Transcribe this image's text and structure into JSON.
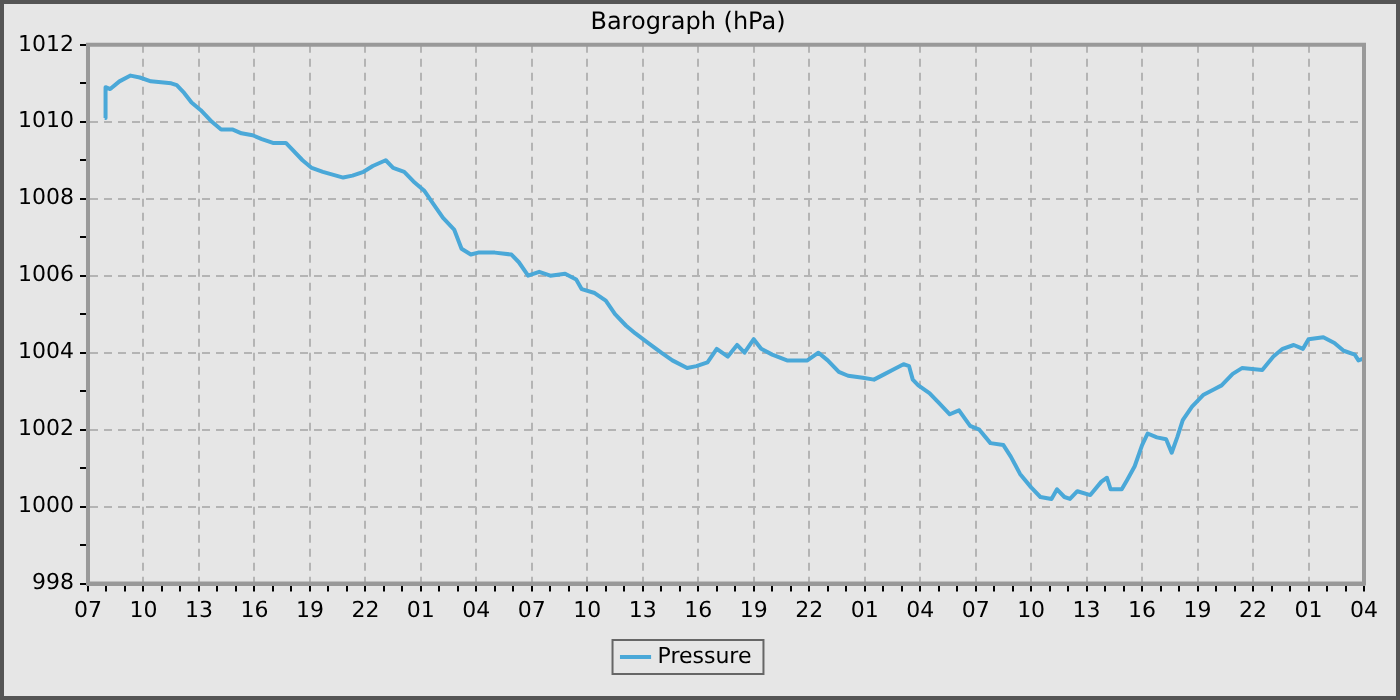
{
  "chart_data": {
    "type": "line",
    "title": "Barograph (hPa)",
    "x": [
      "--01-01T07:54",
      "--01-01T07:57",
      "--01-01T08:12",
      "--01-01T08:42",
      "--01-01T09:18",
      "--01-01T09:48",
      "--01-01T10:24",
      "--01-01T11:30",
      "--01-01T11:48",
      "--01-01T12:12",
      "--01-01T12:36",
      "--01-01T13:06",
      "--01-01T13:42",
      "--01-01T14:12",
      "--01-01T14:48",
      "--01-01T15:18",
      "--01-01T15:54",
      "--01-01T16:24",
      "--01-01T17:00",
      "--01-01T17:42",
      "--01-01T18:00",
      "--01-01T18:36",
      "--01-01T19:06",
      "--01-01T19:42",
      "--01-01T20:48",
      "--01-01T21:18",
      "--01-01T21:54",
      "--01-01T22:24",
      "--01-01T23:06",
      "--01-01T23:30",
      "--01-02T00:06",
      "--01-02T00:36",
      "--01-02T01:12",
      "--01-02T01:42",
      "--01-02T02:12",
      "--01-02T02:48",
      "--01-02T03:12",
      "--01-02T03:42",
      "--01-02T04:06",
      "--01-02T05:00",
      "--01-02T05:54",
      "--01-02T06:18",
      "--01-02T06:48",
      "--01-02T07:24",
      "--01-02T08:00",
      "--01-02T08:48",
      "--01-02T09:24",
      "--01-02T09:42",
      "--01-02T10:24",
      "--01-02T11:00",
      "--01-02T11:30",
      "--01-02T12:06",
      "--01-02T12:36",
      "--01-02T13:18",
      "--01-02T14:00",
      "--01-02T14:36",
      "--01-02T15:24",
      "--01-02T15:54",
      "--01-02T16:30",
      "--01-02T17:00",
      "--01-02T17:36",
      "--01-02T18:06",
      "--01-02T18:30",
      "--01-02T19:00",
      "--01-02T19:24",
      "--01-02T20:00",
      "--01-02T20:48",
      "--01-02T21:54",
      "--01-02T22:30",
      "--01-02T23:00",
      "--01-02T23:36",
      "--01-03T00:06",
      "--01-03T00:54",
      "--01-03T01:30",
      "--01-03T02:06",
      "--01-03T02:30",
      "--01-03T03:06",
      "--01-03T03:24",
      "--01-03T03:36",
      "--01-03T03:54",
      "--01-03T04:30",
      "--01-03T05:00",
      "--01-03T05:36",
      "--01-03T06:06",
      "--01-03T06:42",
      "--01-03T07:12",
      "--01-03T07:48",
      "--01-03T08:30",
      "--01-03T08:54",
      "--01-03T09:24",
      "--01-03T10:00",
      "--01-03T10:30",
      "--01-03T11:06",
      "--01-03T11:24",
      "--01-03T11:48",
      "--01-03T12:06",
      "--01-03T12:30",
      "--01-03T13:12",
      "--01-03T13:48",
      "--01-03T14:06",
      "--01-03T14:18",
      "--01-03T14:54",
      "--01-03T15:12",
      "--01-03T15:36",
      "--01-03T16:00",
      "--01-03T16:18",
      "--01-03T16:48",
      "--01-03T17:18",
      "--01-03T17:36",
      "--01-03T17:54",
      "--01-03T18:12",
      "--01-03T18:42",
      "--01-03T19:18",
      "--01-03T19:54",
      "--01-03T20:18",
      "--01-03T20:54",
      "--01-03T21:24",
      "--01-03T22:30",
      "--01-03T23:06",
      "--01-03T23:36",
      "--01-04T00:12",
      "--01-04T00:42",
      "--01-04T01:00",
      "--01-04T01:48",
      "--01-04T02:24",
      "--01-04T02:54",
      "--01-04T03:30",
      "--01-04T03:42",
      "--01-04T04:00"
    ],
    "series": [
      {
        "name": "Pressure",
        "color": "#4aa8d8",
        "values": [
          1010.1,
          1010.9,
          1010.85,
          1011.05,
          1011.2,
          1011.15,
          1011.05,
          1011.0,
          1010.95,
          1010.75,
          1010.5,
          1010.3,
          1010.0,
          1009.8,
          1009.8,
          1009.7,
          1009.65,
          1009.55,
          1009.45,
          1009.45,
          1009.3,
          1009.0,
          1008.8,
          1008.7,
          1008.55,
          1008.6,
          1008.7,
          1008.85,
          1009.0,
          1008.8,
          1008.7,
          1008.45,
          1008.2,
          1007.85,
          1007.5,
          1007.2,
          1006.7,
          1006.55,
          1006.6,
          1006.6,
          1006.55,
          1006.35,
          1006.0,
          1006.1,
          1006.0,
          1006.05,
          1005.9,
          1005.65,
          1005.55,
          1005.35,
          1005.0,
          1004.7,
          1004.5,
          1004.25,
          1004.0,
          1003.8,
          1003.6,
          1003.65,
          1003.75,
          1004.1,
          1003.9,
          1004.2,
          1004.0,
          1004.35,
          1004.1,
          1003.95,
          1003.8,
          1003.8,
          1004.0,
          1003.8,
          1003.5,
          1003.4,
          1003.35,
          1003.3,
          1003.45,
          1003.55,
          1003.7,
          1003.65,
          1003.3,
          1003.15,
          1002.95,
          1002.7,
          1002.4,
          1002.5,
          1002.1,
          1002.0,
          1001.65,
          1001.6,
          1001.3,
          1000.85,
          1000.5,
          1000.25,
          1000.2,
          1000.45,
          1000.25,
          1000.2,
          1000.4,
          1000.3,
          1000.65,
          1000.75,
          1000.45,
          1000.45,
          1000.7,
          1001.05,
          1001.6,
          1001.9,
          1001.8,
          1001.75,
          1001.4,
          1001.8,
          1002.25,
          1002.6,
          1002.9,
          1003.05,
          1003.15,
          1003.45,
          1003.6,
          1003.55,
          1003.9,
          1004.1,
          1004.2,
          1004.1,
          1004.35,
          1004.4,
          1004.25,
          1004.05,
          1003.95,
          1003.8,
          1003.85
        ]
      }
    ],
    "xlim": [
      "--01-01T07:00",
      "--01-04T04:00"
    ],
    "xticks": [
      {
        "value": "--01-01T07:00",
        "label": "07"
      },
      {
        "value": "--01-01T08:00",
        "label": null
      },
      {
        "value": "--01-01T09:00",
        "label": null
      },
      {
        "value": "--01-01T10:00",
        "label": "10"
      },
      {
        "value": "--01-01T11:00",
        "label": null
      },
      {
        "value": "--01-01T12:00",
        "label": null
      },
      {
        "value": "--01-01T13:00",
        "label": "13"
      },
      {
        "value": "--01-01T14:00",
        "label": null
      },
      {
        "value": "--01-01T15:00",
        "label": null
      },
      {
        "value": "--01-01T16:00",
        "label": "16"
      },
      {
        "value": "--01-01T17:00",
        "label": null
      },
      {
        "value": "--01-01T18:00",
        "label": null
      },
      {
        "value": "--01-01T19:00",
        "label": "19"
      },
      {
        "value": "--01-01T20:00",
        "label": null
      },
      {
        "value": "--01-01T21:00",
        "label": null
      },
      {
        "value": "--01-01T22:00",
        "label": "22"
      },
      {
        "value": "--01-01T23:00",
        "label": null
      },
      {
        "value": "--01-02T00:00",
        "label": null
      },
      {
        "value": "--01-02T01:00",
        "label": "01"
      },
      {
        "value": "--01-02T02:00",
        "label": null
      },
      {
        "value": "--01-02T03:00",
        "label": null
      },
      {
        "value": "--01-02T04:00",
        "label": "04"
      },
      {
        "value": "--01-02T05:00",
        "label": null
      },
      {
        "value": "--01-02T06:00",
        "label": null
      },
      {
        "value": "--01-02T07:00",
        "label": "07"
      },
      {
        "value": "--01-02T08:00",
        "label": null
      },
      {
        "value": "--01-02T09:00",
        "label": null
      },
      {
        "value": "--01-02T10:00",
        "label": "10"
      },
      {
        "value": "--01-02T11:00",
        "label": null
      },
      {
        "value": "--01-02T12:00",
        "label": null
      },
      {
        "value": "--01-02T13:00",
        "label": "13"
      },
      {
        "value": "--01-02T14:00",
        "label": null
      },
      {
        "value": "--01-02T15:00",
        "label": null
      },
      {
        "value": "--01-02T16:00",
        "label": "16"
      },
      {
        "value": "--01-02T17:00",
        "label": null
      },
      {
        "value": "--01-02T18:00",
        "label": null
      },
      {
        "value": "--01-02T19:00",
        "label": "19"
      },
      {
        "value": "--01-02T20:00",
        "label": null
      },
      {
        "value": "--01-02T21:00",
        "label": null
      },
      {
        "value": "--01-02T22:00",
        "label": "22"
      },
      {
        "value": "--01-02T23:00",
        "label": null
      },
      {
        "value": "--01-03T00:00",
        "label": null
      },
      {
        "value": "--01-03T01:00",
        "label": "01"
      },
      {
        "value": "--01-03T02:00",
        "label": null
      },
      {
        "value": "--01-03T03:00",
        "label": null
      },
      {
        "value": "--01-03T04:00",
        "label": "04"
      },
      {
        "value": "--01-03T05:00",
        "label": null
      },
      {
        "value": "--01-03T06:00",
        "label": null
      },
      {
        "value": "--01-03T07:00",
        "label": "07"
      },
      {
        "value": "--01-03T08:00",
        "label": null
      },
      {
        "value": "--01-03T09:00",
        "label": null
      },
      {
        "value": "--01-03T10:00",
        "label": "10"
      },
      {
        "value": "--01-03T11:00",
        "label": null
      },
      {
        "value": "--01-03T12:00",
        "label": null
      },
      {
        "value": "--01-03T13:00",
        "label": "13"
      },
      {
        "value": "--01-03T14:00",
        "label": null
      },
      {
        "value": "--01-03T15:00",
        "label": null
      },
      {
        "value": "--01-03T16:00",
        "label": "16"
      },
      {
        "value": "--01-03T17:00",
        "label": null
      },
      {
        "value": "--01-03T18:00",
        "label": null
      },
      {
        "value": "--01-03T19:00",
        "label": "19"
      },
      {
        "value": "--01-03T20:00",
        "label": null
      },
      {
        "value": "--01-03T21:00",
        "label": null
      },
      {
        "value": "--01-03T22:00",
        "label": "22"
      },
      {
        "value": "--01-03T23:00",
        "label": null
      },
      {
        "value": "--01-04T00:00",
        "label": null
      },
      {
        "value": "--01-04T01:00",
        "label": "01"
      },
      {
        "value": "--01-04T02:00",
        "label": null
      },
      {
        "value": "--01-04T03:00",
        "label": null
      },
      {
        "value": "--01-04T04:00",
        "label": "04"
      }
    ],
    "ylim": [
      998,
      1012
    ],
    "yticks": [
      998,
      {
        "value": 999,
        "label": null
      },
      1000,
      {
        "value": 1001,
        "label": null
      },
      1002,
      {
        "value": 1003,
        "label": null
      },
      1004,
      {
        "value": 1005,
        "label": null
      },
      1006,
      {
        "value": 1007,
        "label": null
      },
      1008,
      {
        "value": 1009,
        "label": null
      },
      1010,
      {
        "value": 1011,
        "label": null
      },
      1012
    ],
    "grid": true,
    "legend": "bottom",
    "marker": "none",
    "line_style": "solid"
  }
}
